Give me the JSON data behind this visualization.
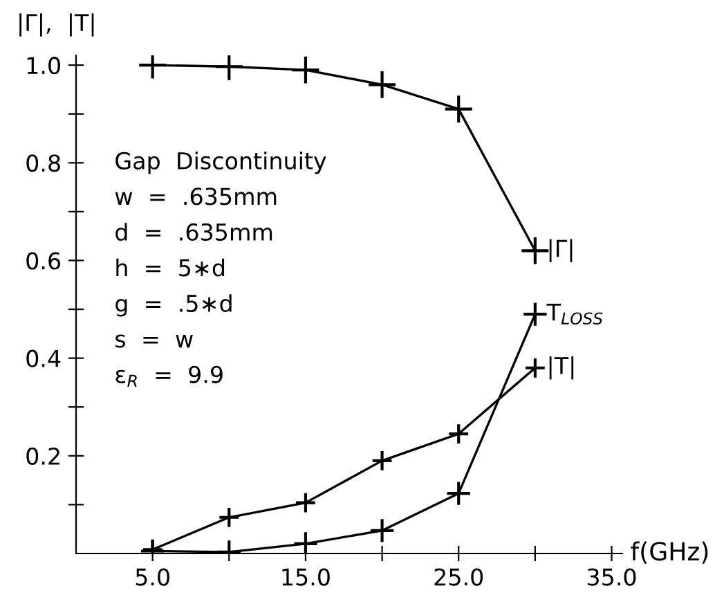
{
  "chart_data": {
    "type": "line",
    "xlabel": "f(GHz)",
    "ylabel": "|Γ|,  |T|",
    "x": [
      5,
      10,
      15,
      20,
      25,
      30
    ],
    "series": [
      {
        "name": "|Γ|",
        "color": "#000000",
        "values": [
          1.0,
          0.997,
          0.99,
          0.96,
          0.91,
          0.62
        ]
      },
      {
        "name": "T$_{LOSS}$",
        "color": "#000000",
        "values": [
          0.005,
          0.003,
          0.02,
          0.047,
          0.123,
          0.49
        ]
      },
      {
        "name": "|T|",
        "color": "#000000",
        "values": [
          0.008,
          0.074,
          0.104,
          0.19,
          0.245,
          0.38
        ]
      }
    ],
    "xlim": [
      0,
      35.7
    ],
    "ylim": [
      0,
      1.02
    ],
    "xticks": [
      {
        "value": 5,
        "label": "5.0"
      },
      {
        "value": 10,
        "label": null
      },
      {
        "value": 15,
        "label": "15.0"
      },
      {
        "value": 20,
        "label": null
      },
      {
        "value": 25,
        "label": "25.0"
      },
      {
        "value": 30,
        "label": null
      },
      {
        "value": 35,
        "label": "35.0"
      }
    ],
    "yticks": [
      {
        "value": 0.1,
        "label": null
      },
      {
        "value": 0.2,
        "label": "0.2"
      },
      {
        "value": 0.3,
        "label": null
      },
      {
        "value": 0.4,
        "label": "0.4"
      },
      {
        "value": 0.5,
        "label": null
      },
      {
        "value": 0.6,
        "label": "0.6"
      },
      {
        "value": 0.7,
        "label": null
      },
      {
        "value": 0.8,
        "label": "0.8"
      },
      {
        "value": 0.9,
        "label": null
      },
      {
        "value": 1.0,
        "label": "1.0"
      }
    ],
    "annotations": [
      "Gap  Discontinuity",
      "w  =  .635mm",
      "d  =  .635mm",
      "h  =  5∗d",
      "g  =  .5∗d",
      "s  =  w",
      "ε$_{R}$  =  9.9"
    ],
    "grid": false,
    "legend": false,
    "marker": "cross",
    "line_style": "solid"
  }
}
